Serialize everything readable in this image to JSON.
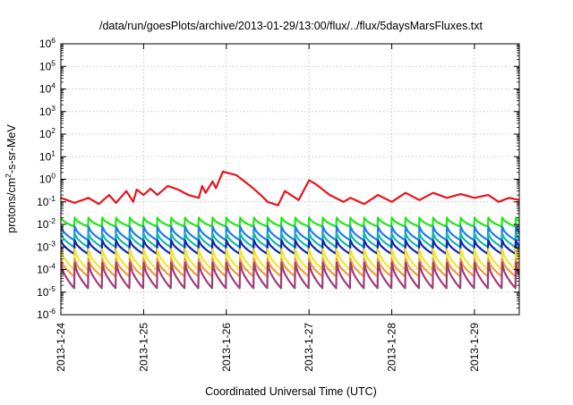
{
  "chart_data": {
    "type": "line",
    "title": "/data/run/goesPlots/archive/2013-01-29/13:00/flux/../flux/5daysMarsFluxes.txt",
    "xlabel": "Coordinated Universal Time (UTC)",
    "ylabel": {
      "prefix": "protons/cm",
      "superscript": "2",
      "suffix": "-s-sr-MeV"
    },
    "y_scale": "log",
    "ylim": [
      1e-06,
      1000000.0
    ],
    "y_ticks": [
      {
        "value": 1e-06,
        "base": "10",
        "exp": "-6"
      },
      {
        "value": 1e-05,
        "base": "10",
        "exp": "-5"
      },
      {
        "value": 0.0001,
        "base": "10",
        "exp": "-4"
      },
      {
        "value": 0.001,
        "base": "10",
        "exp": "-3"
      },
      {
        "value": 0.01,
        "base": "10",
        "exp": "-2"
      },
      {
        "value": 0.1,
        "base": "10",
        "exp": "-1"
      },
      {
        "value": 1,
        "base": "10",
        "exp": "0"
      },
      {
        "value": 10,
        "base": "10",
        "exp": "1"
      },
      {
        "value": 100,
        "base": "10",
        "exp": "2"
      },
      {
        "value": 1000,
        "base": "10",
        "exp": "3"
      },
      {
        "value": 10000,
        "base": "10",
        "exp": "4"
      },
      {
        "value": 100000,
        "base": "10",
        "exp": "5"
      },
      {
        "value": 1000000,
        "base": "10",
        "exp": "6"
      }
    ],
    "x_unit": "day",
    "xlim": [
      "2013-01-24",
      "2013-01-29T13:00"
    ],
    "x_ticks": [
      {
        "value": "2013-01-24",
        "label": "2013-1-24"
      },
      {
        "value": "2013-01-25",
        "label": "2013-1-25"
      },
      {
        "value": "2013-01-26",
        "label": "2013-1-26"
      },
      {
        "value": "2013-01-27",
        "label": "2013-1-27"
      },
      {
        "value": "2013-01-28",
        "label": "2013-1-28"
      },
      {
        "value": "2013-01-29",
        "label": "2013-1-29"
      }
    ],
    "grid": true,
    "legend": "none",
    "series": [
      {
        "color": "#e8141c",
        "x": [
          "2013-01-24T00:00",
          "2013-01-24T04:00",
          "2013-01-24T08:00",
          "2013-01-24T11:00",
          "2013-01-24T14:00",
          "2013-01-24T16:00",
          "2013-01-24T19:00",
          "2013-01-24T21:00",
          "2013-01-24T22:00",
          "2013-01-25T00:00",
          "2013-01-25T02:00",
          "2013-01-25T04:00",
          "2013-01-25T07:00",
          "2013-01-25T10:00",
          "2013-01-25T13:00",
          "2013-01-25T16:00",
          "2013-01-25T17:00",
          "2013-01-25T18:00",
          "2013-01-25T20:00",
          "2013-01-25T21:00",
          "2013-01-25T23:00",
          "2013-01-26T03:00",
          "2013-01-26T07:00",
          "2013-01-26T10:00",
          "2013-01-26T12:00",
          "2013-01-26T15:00",
          "2013-01-26T17:00",
          "2013-01-26T21:00",
          "2013-01-27T00:00",
          "2013-01-27T02:00",
          "2013-01-27T06:00",
          "2013-01-27T10:00",
          "2013-01-27T12:00",
          "2013-01-27T16:00",
          "2013-01-27T20:00",
          "2013-01-28T00:00",
          "2013-01-28T04:00",
          "2013-01-28T08:00",
          "2013-01-28T12:00",
          "2013-01-28T16:00",
          "2013-01-28T20:00",
          "2013-01-29T00:00",
          "2013-01-29T04:00",
          "2013-01-29T07:00",
          "2013-01-29T10:00",
          "2013-01-29T13:00"
        ],
        "values": [
          0.15,
          0.09,
          0.15,
          0.08,
          0.2,
          0.09,
          0.3,
          0.1,
          0.35,
          0.2,
          0.38,
          0.2,
          0.5,
          0.35,
          0.2,
          0.15,
          0.5,
          0.25,
          0.8,
          0.4,
          2.2,
          1.5,
          0.5,
          0.2,
          0.1,
          0.07,
          0.3,
          0.12,
          0.9,
          0.6,
          0.2,
          0.1,
          0.15,
          0.08,
          0.2,
          0.1,
          0.25,
          0.12,
          0.25,
          0.15,
          0.22,
          0.15,
          0.2,
          0.1,
          0.15,
          0.12
        ]
      },
      {
        "color": "#22e51a",
        "x": [
          "2013-01-24T00:00",
          "2013-01-29T13:00"
        ],
        "values": [
          0.02,
          0.02
        ],
        "cycle_hours": 4,
        "cycle_low": 0.008
      },
      {
        "color": "#1e7bf0",
        "x": [
          "2013-01-24T00:00",
          "2013-01-29T13:00"
        ],
        "values": [
          0.008,
          0.008
        ],
        "cycle_hours": 4,
        "cycle_low": 0.002
      },
      {
        "color": "#12b9a8",
        "x": [
          "2013-01-24T00:00",
          "2013-01-29T13:00"
        ],
        "values": [
          0.004,
          0.004
        ],
        "cycle_hours": 4,
        "cycle_low": 0.001
      },
      {
        "color": "#1226b0",
        "x": [
          "2013-01-24T00:00",
          "2013-01-29T13:00"
        ],
        "values": [
          0.002,
          0.002
        ],
        "cycle_hours": 4,
        "cycle_low": 0.0005
      },
      {
        "color": "#f2e428",
        "x": [
          "2013-01-24T00:00",
          "2013-01-29T13:00"
        ],
        "values": [
          0.0008,
          0.0008
        ],
        "cycle_hours": 4,
        "cycle_low": 0.0001
      },
      {
        "color": "#f39a2e",
        "x": [
          "2013-01-24T00:00",
          "2013-01-29T13:00"
        ],
        "values": [
          0.0003,
          0.0003
        ],
        "cycle_hours": 4,
        "cycle_low": 5e-05
      },
      {
        "color": "#a13d7a",
        "x": [
          "2013-01-24T00:00",
          "2013-01-29T13:00"
        ],
        "values": [
          0.0002,
          0.0002
        ],
        "cycle_hours": 4,
        "cycle_low": 1.5e-05
      }
    ]
  }
}
